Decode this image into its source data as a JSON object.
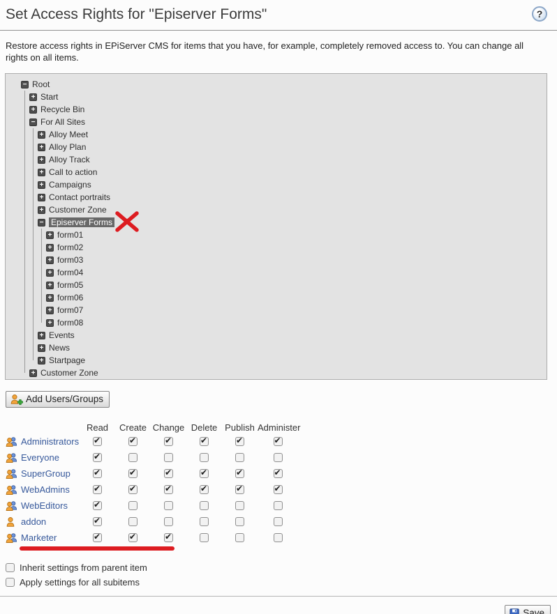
{
  "page": {
    "title": "Set Access Rights for \"Episerver Forms\"",
    "help_label": "?",
    "description": "Restore access rights in EPiServer CMS for items that you have, for example, completely removed access to. You can change all rights on all items."
  },
  "tree": {
    "items": [
      {
        "label": "Root",
        "level": 0,
        "state": "expanded"
      },
      {
        "label": "Start",
        "level": 1,
        "state": "collapsed"
      },
      {
        "label": "Recycle Bin",
        "level": 1,
        "state": "collapsed"
      },
      {
        "label": "For All Sites",
        "level": 1,
        "state": "expanded"
      },
      {
        "label": "Alloy Meet",
        "level": 2,
        "state": "collapsed"
      },
      {
        "label": "Alloy Plan",
        "level": 2,
        "state": "collapsed"
      },
      {
        "label": "Alloy Track",
        "level": 2,
        "state": "collapsed"
      },
      {
        "label": "Call to action",
        "level": 2,
        "state": "collapsed"
      },
      {
        "label": "Campaigns",
        "level": 2,
        "state": "collapsed"
      },
      {
        "label": "Contact portraits",
        "level": 2,
        "state": "collapsed"
      },
      {
        "label": "Customer Zone",
        "level": 2,
        "state": "collapsed"
      },
      {
        "label": "Episerver Forms",
        "level": 2,
        "state": "expanded",
        "selected": true,
        "annotation": "red-x"
      },
      {
        "label": "form01",
        "level": 3,
        "state": "collapsed"
      },
      {
        "label": "form02",
        "level": 3,
        "state": "collapsed"
      },
      {
        "label": "form03",
        "level": 3,
        "state": "collapsed"
      },
      {
        "label": "form04",
        "level": 3,
        "state": "collapsed"
      },
      {
        "label": "form05",
        "level": 3,
        "state": "collapsed"
      },
      {
        "label": "form06",
        "level": 3,
        "state": "collapsed"
      },
      {
        "label": "form07",
        "level": 3,
        "state": "collapsed"
      },
      {
        "label": "form08",
        "level": 3,
        "state": "collapsed"
      },
      {
        "label": "Events",
        "level": 2,
        "state": "collapsed"
      },
      {
        "label": "News",
        "level": 2,
        "state": "collapsed"
      },
      {
        "label": "Startpage",
        "level": 2,
        "state": "collapsed"
      },
      {
        "label": "Customer Zone",
        "level": 1,
        "state": "collapsed"
      }
    ]
  },
  "toolbar": {
    "add_users_groups_label": "Add Users/Groups"
  },
  "permissions": {
    "columns": [
      "Read",
      "Create",
      "Change",
      "Delete",
      "Publish",
      "Administer"
    ],
    "rows": [
      {
        "name": "Administrators",
        "icon": "group",
        "rights": [
          true,
          true,
          true,
          true,
          true,
          true
        ]
      },
      {
        "name": "Everyone",
        "icon": "group",
        "rights": [
          true,
          false,
          false,
          false,
          false,
          false
        ]
      },
      {
        "name": "SuperGroup",
        "icon": "group",
        "rights": [
          true,
          true,
          true,
          true,
          true,
          true
        ]
      },
      {
        "name": "WebAdmins",
        "icon": "group",
        "rights": [
          true,
          true,
          true,
          true,
          true,
          true
        ]
      },
      {
        "name": "WebEditors",
        "icon": "group",
        "rights": [
          true,
          false,
          false,
          false,
          false,
          false
        ]
      },
      {
        "name": "addon",
        "icon": "user",
        "rights": [
          true,
          false,
          false,
          false,
          false,
          false
        ]
      },
      {
        "name": "Marketer",
        "icon": "group",
        "rights": [
          true,
          true,
          true,
          false,
          false,
          false
        ],
        "annotation": "red-underline"
      }
    ]
  },
  "options": [
    {
      "label": "Inherit settings from parent item",
      "checked": false
    },
    {
      "label": "Apply settings for all subitems",
      "checked": false
    }
  ],
  "footer": {
    "save_label": "Save"
  },
  "colors": {
    "annotation_red": "#dd1c21",
    "link_blue": "#37599b",
    "selected_item_bg": "#686868",
    "tree_panel_bg": "#e3e3e3"
  }
}
